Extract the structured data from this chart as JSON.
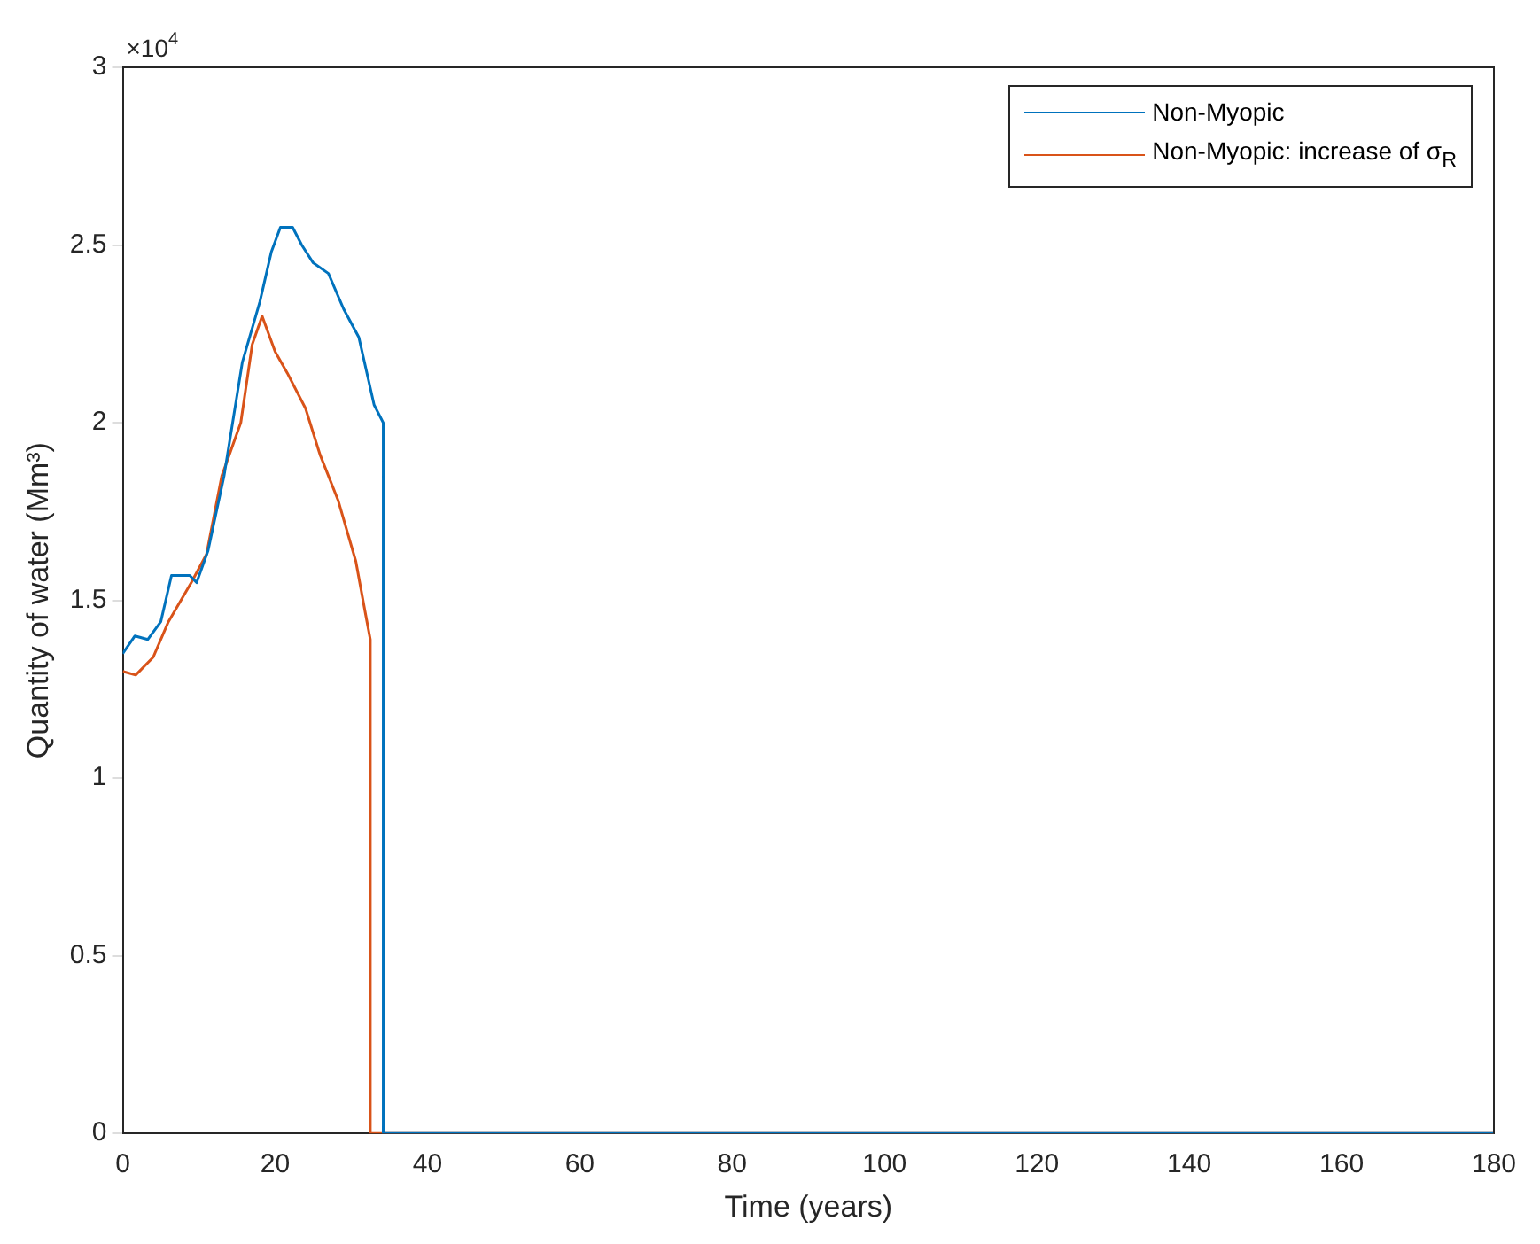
{
  "chart_data": {
    "type": "line",
    "xlabel": "Time (years)",
    "ylabel": "Quantity of water (Mm³)",
    "annotations": [
      "×10$^{4}$"
    ],
    "xlim": [
      0,
      180
    ],
    "xticks": [
      0,
      20,
      40,
      60,
      80,
      100,
      120,
      140,
      160,
      180
    ],
    "ylim": [
      0,
      3
    ],
    "yticks": [
      0,
      0.5,
      1,
      1.5,
      2,
      2.5,
      3
    ],
    "legend": "top right",
    "grid": false,
    "marker": "none",
    "line_style": "solid",
    "series": [
      {
        "name": "Non-Myopic",
        "color": "#0072bd",
        "x": [
          0,
          1.6,
          3.3,
          5,
          6.4,
          8.8,
          9.7,
          11.2,
          13.3,
          15.7,
          18,
          19.5,
          20.7,
          22.3,
          23.5,
          25,
          27,
          29,
          31,
          33,
          34.2,
          34.2,
          180
        ],
        "values": [
          1.35,
          1.4,
          1.39,
          1.44,
          1.57,
          1.57,
          1.55,
          1.64,
          1.85,
          2.17,
          2.34,
          2.48,
          2.55,
          2.55,
          2.5,
          2.45,
          2.42,
          2.32,
          2.24,
          2.05,
          2,
          0,
          0
        ]
      },
      {
        "name": "Non-Myopic: increase of σ$_{R}$",
        "color": "#d95319",
        "x": [
          0,
          1.7,
          4,
          6,
          9,
          11,
          13,
          15.5,
          17,
          18.3,
          20,
          21.6,
          24,
          25.9,
          28.3,
          30.6,
          31.8,
          32.5,
          32.5,
          180
        ],
        "values": [
          1.3,
          1.29,
          1.34,
          1.44,
          1.55,
          1.63,
          1.85,
          2,
          2.22,
          2.3,
          2.2,
          2.14,
          2.04,
          1.91,
          1.78,
          1.61,
          1.47,
          1.39,
          0,
          0
        ]
      }
    ]
  }
}
